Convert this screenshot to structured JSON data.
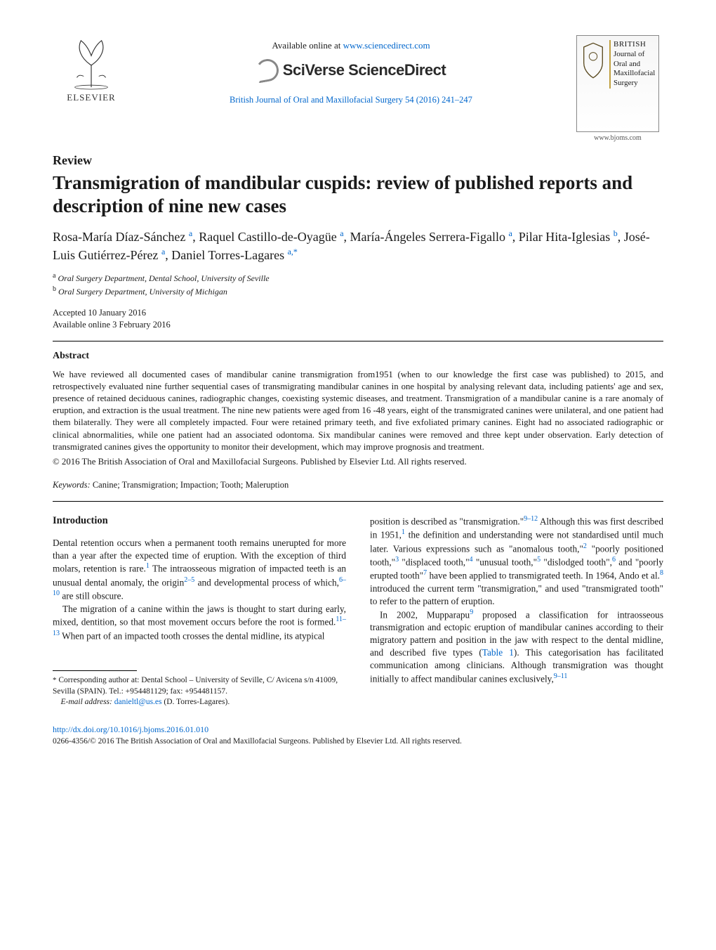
{
  "header": {
    "publisher_name": "ELSEVIER",
    "available_prefix": "Available online at ",
    "available_url": "www.sciencedirect.com",
    "platform_name": "SciVerse ScienceDirect",
    "journal_citation": "British Journal of Oral and Maxillofacial Surgery 54 (2016) 241–247",
    "cover": {
      "british": "BRITISH",
      "line1": "Journal of",
      "line2": "Oral and",
      "line3": "Maxillofacial",
      "line4": "Surgery",
      "site": "www.bjoms.com"
    }
  },
  "article": {
    "type": "Review",
    "title": "Transmigration of mandibular cuspids: review of published reports and description of nine new cases",
    "authors_html": "Rosa-María Díaz-Sánchez|a|, Raquel Castillo-de-Oyagüe|a|, María-Ángeles Serrera-Figallo|a|, Pilar Hita-Iglesias|b|, José-Luis Gutiérrez-Pérez|a|, Daniel Torres-Lagares|a,*|",
    "affiliations": {
      "a": "Oral Surgery Department, Dental School, University of Seville",
      "b": "Oral Surgery Department, University of Michigan"
    },
    "accepted": "Accepted 10 January 2016",
    "online": "Available online 3 February 2016"
  },
  "abstract": {
    "heading": "Abstract",
    "text": "We have reviewed all documented cases of mandibular canine transmigration from1951 (when to our knowledge the first case was published) to 2015, and retrospectively evaluated nine further sequential cases of transmigrating mandibular canines in one hospital by analysing relevant data, including patients' age and sex, presence of retained deciduous canines, radiographic changes, coexisting systemic diseases, and treatment. Transmigration of a mandibular canine is a rare anomaly of eruption, and extraction is the usual treatment. The nine new patients were aged from 16 -48 years, eight of the transmigrated canines were unilateral, and one patient had them bilaterally. They were all completely impacted. Four were retained primary teeth, and five exfoliated primary canines. Eight had no associated radiographic or clinical abnormalities, while one patient had an associated odontoma. Six mandibular canines were removed and three kept under observation. Early detection of transmigrated canines gives the opportunity to monitor their development, which may improve prognosis and treatment.",
    "copyright": "© 2016 The British Association of Oral and Maxillofacial Surgeons. Published by Elsevier Ltd. All rights reserved.",
    "keywords_label": "Keywords:",
    "keywords": "Canine; Transmigration; Impaction; Tooth; Maleruption"
  },
  "body": {
    "intro_heading": "Introduction",
    "left_p1": "Dental retention occurs when a permanent tooth remains unerupted for more than a year after the expected time of eruption. With the exception of third molars, retention is rare.",
    "left_p1_ref": "1",
    "left_p2a": "The intraosseous migration of impacted teeth is an unusual dental anomaly, the origin",
    "left_p2_ref1": "2–5",
    "left_p2b": " and developmental process of which,",
    "left_p2_ref2": "6–10",
    "left_p2c": " are still obscure.",
    "left_p3a": "The migration of a canine within the jaws is thought to start during early, mixed, dentition, so that most movement occurs before the root is formed.",
    "left_p3_ref": "11–13",
    "left_p3b": " When part of an impacted tooth crosses the dental midline, its atypical",
    "right_p1a": "position is described as \"transmigration.\"",
    "right_p1_ref1": "9–12",
    "right_p1b": " Although this was first described in 1951,",
    "right_p1_ref2": "1",
    "right_p1c": " the definition and understanding were not standardised until much later. Various expressions such as \"anomalous tooth,\"",
    "right_p1_ref3": "2",
    "right_p1d": " \"poorly positioned tooth,\"",
    "right_p1_ref4": "3",
    "right_p1e": " \"displaced tooth,\"",
    "right_p1_ref5": "4",
    "right_p1f": " \"unusual tooth,\"",
    "right_p1_ref6": "5",
    "right_p1g": " \"dislodged tooth\",",
    "right_p1_ref7": "6",
    "right_p1h": " and \"poorly erupted tooth\"",
    "right_p1_ref8": "7",
    "right_p1i": " have been applied to transmigrated teeth. In 1964, Ando et al.",
    "right_p1_ref9": "8",
    "right_p1j": " introduced the current term \"transmigration,\" and used \"transmigrated tooth\" to refer to the pattern of eruption.",
    "right_p2a": "In 2002, Mupparapu",
    "right_p2_ref1": "9",
    "right_p2b": " proposed a classification for intraosseous transmigration and ectopic eruption of mandibular canines according to their migratory pattern and position in the jaw with respect to the dental midline, and described five types (",
    "right_p2_tbl": "Table 1",
    "right_p2c": "). This categorisation has facilitated communication among clinicians. Although transmigration was thought initially to affect mandibular canines exclusively,",
    "right_p2_ref2": "9–11"
  },
  "footnote": {
    "corr_label": "Corresponding author at:",
    "corr_text": " Dental School – University of Seville, C/ Avicena s/n 41009, Sevilla (SPAIN). Tel.: +954481129; fax: +954481157.",
    "email_label": "E-mail address:",
    "email": "danieltl@us.es",
    "email_who": " (D. Torres-Lagares)."
  },
  "footer": {
    "doi": "http://dx.doi.org/10.1016/j.bjoms.2016.01.010",
    "issn_copy": "0266-4356/© 2016 The British Association of Oral and Maxillofacial Surgeons. Published by Elsevier Ltd. All rights reserved."
  },
  "colors": {
    "link": "#0066cc",
    "text": "#1a1a1a"
  }
}
